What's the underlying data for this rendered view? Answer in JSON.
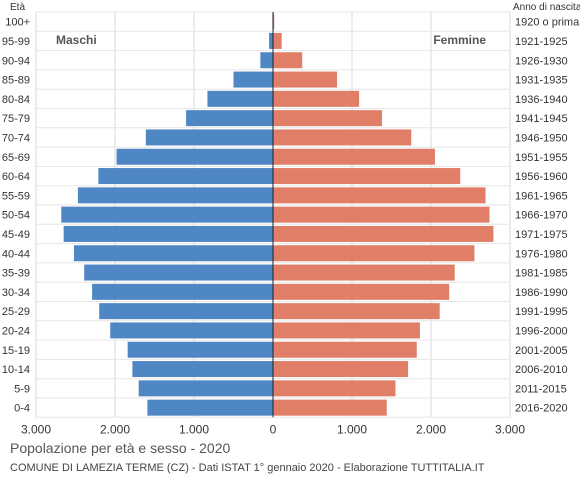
{
  "chart_data": {
    "type": "bar",
    "orientation": "horizontal",
    "title": "Popolazione per età e sesso - 2020",
    "subtitle": "COMUNE DI LAMEZIA TERME (CZ) - Dati ISTAT 1° gennaio 2020 - Elaborazione TUTTITALIA.IT",
    "left_axis_title": "Età",
    "right_axis_title": "Anno di nascita",
    "age_groups": [
      "100+",
      "95-99",
      "90-94",
      "85-89",
      "80-84",
      "75-79",
      "70-74",
      "65-69",
      "60-64",
      "55-59",
      "50-54",
      "45-49",
      "40-44",
      "35-39",
      "30-34",
      "25-29",
      "20-24",
      "15-19",
      "10-14",
      "5-9",
      "0-4"
    ],
    "birth_years": [
      "1920 o prima",
      "1921-1925",
      "1926-1930",
      "1931-1935",
      "1936-1940",
      "1941-1945",
      "1946-1950",
      "1951-1955",
      "1956-1960",
      "1961-1965",
      "1966-1970",
      "1971-1975",
      "1976-1980",
      "1981-1985",
      "1986-1990",
      "1991-1995",
      "1996-2000",
      "2001-2005",
      "2006-2010",
      "2011-2015",
      "2016-2020"
    ],
    "series": [
      {
        "name": "Maschi",
        "color": "#4f87c4",
        "values": [
          5,
          50,
          160,
          500,
          830,
          1100,
          1610,
          1980,
          2210,
          2470,
          2680,
          2650,
          2520,
          2390,
          2290,
          2200,
          2060,
          1840,
          1780,
          1700,
          1590
        ]
      },
      {
        "name": "Femmine",
        "color": "#e07e68",
        "values": [
          15,
          110,
          370,
          810,
          1090,
          1380,
          1750,
          2050,
          2370,
          2690,
          2740,
          2790,
          2550,
          2300,
          2230,
          2110,
          1860,
          1820,
          1710,
          1550,
          1440
        ]
      }
    ],
    "xlim": [
      -3000,
      3000
    ],
    "x_ticks": [
      -3000,
      -2000,
      -1000,
      0,
      1000,
      2000,
      3000
    ],
    "x_tick_labels": [
      "3.000",
      "2.000",
      "1.000",
      "0",
      "1.000",
      "2.000",
      "3.000"
    ],
    "grid": true
  }
}
